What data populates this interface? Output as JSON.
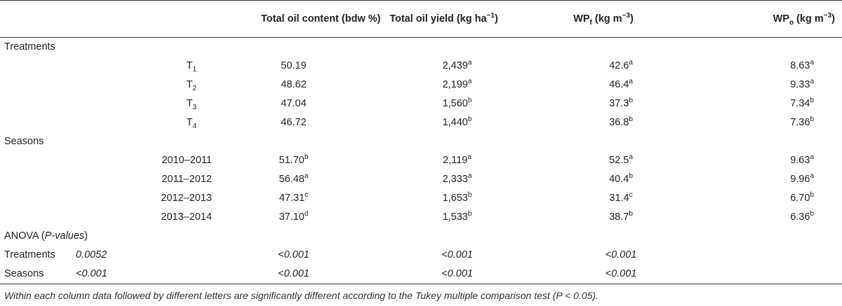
{
  "headers": {
    "col1": "Total oil content (bdw %)",
    "col2": "Total oil yield (kg ha",
    "col2_sup": "−1",
    "col2_tail": ")",
    "col3_base": "WP",
    "col3_sub": "f",
    "col3_unit": " (kg m",
    "col3_sup": "−3",
    "col3_tail": ")",
    "col4_base": "WP",
    "col4_sub": "o",
    "col4_unit": " (kg m",
    "col4_sup": "−3",
    "col4_tail": ")"
  },
  "sections": {
    "treatments": "Treatments",
    "seasons": "Seasons",
    "anova": "ANOVA (",
    "anova_italic": "P-values",
    "anova_tail": ")"
  },
  "treatments": [
    {
      "label_base": "T",
      "label_sub": "1",
      "c1": "50.19",
      "c1_sup": "",
      "c2": "2,439",
      "c2_sup": "a",
      "c3": "42.6",
      "c3_sup": "a",
      "c4": "8.63",
      "c4_sup": "a"
    },
    {
      "label_base": "T",
      "label_sub": "2",
      "c1": "48.62",
      "c1_sup": "",
      "c2": "2,199",
      "c2_sup": "a",
      "c3": "46.4",
      "c3_sup": "a",
      "c4": "9.33",
      "c4_sup": "a"
    },
    {
      "label_base": "T",
      "label_sub": "3",
      "c1": "47.04",
      "c1_sup": "",
      "c2": "1,560",
      "c2_sup": "b",
      "c3": "37.3",
      "c3_sup": "b",
      "c4": "7.34",
      "c4_sup": "b"
    },
    {
      "label_base": "T",
      "label_sub": "4",
      "c1": "46.72",
      "c1_sup": "",
      "c2": "1,440",
      "c2_sup": "b",
      "c3": "36.8",
      "c3_sup": "b",
      "c4": "7.36",
      "c4_sup": "b"
    }
  ],
  "seasons": [
    {
      "label": "2010–2011",
      "c1": "51.70",
      "c1_sup": "b",
      "c2": "2,119",
      "c2_sup": "a",
      "c3": "52.5",
      "c3_sup": "a",
      "c4": "9.63",
      "c4_sup": "a"
    },
    {
      "label": "2011–2012",
      "c1": "56.48",
      "c1_sup": "a",
      "c2": "2,333",
      "c2_sup": "a",
      "c3": "40.4",
      "c3_sup": "b",
      "c4": "9.96",
      "c4_sup": "a"
    },
    {
      "label": "2012–2013",
      "c1": "47.31",
      "c1_sup": "c",
      "c2": "1,653",
      "c2_sup": "b",
      "c3": "31.4",
      "c3_sup": "c",
      "c4": "6.70",
      "c4_sup": "b"
    },
    {
      "label": "2013–2014",
      "c1": "37.10",
      "c1_sup": "d",
      "c2": "1,533",
      "c2_sup": "b",
      "c3": "38.7",
      "c3_sup": "b",
      "c4": "6.36",
      "c4_sup": "b"
    }
  ],
  "anova": [
    {
      "label": "Treatments",
      "c0": "0.0052",
      "c1": "<0.001",
      "c2": "<0.001",
      "c3": "<0.001"
    },
    {
      "label": "Seasons",
      "c0": "<0.001",
      "c1": "<0.001",
      "c2": "<0.001",
      "c3": "<0.001"
    }
  ],
  "footnote": "Within each column data followed by different letters are significantly different according to the Tukey multiple comparison test (P < 0.05)."
}
